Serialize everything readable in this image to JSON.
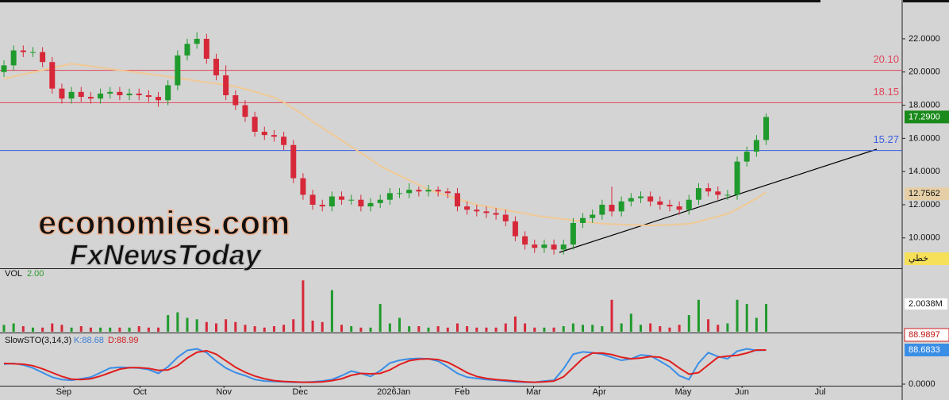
{
  "chart_data": {
    "type": "candlestick",
    "xlim": [
      -0.41,
      93.1
    ],
    "xticks": [
      {
        "value": 6.2,
        "label": "Sep"
      },
      {
        "value": 14.1,
        "label": "Oct"
      },
      {
        "value": 22.8,
        "label": "Nov"
      },
      {
        "value": 30.7,
        "label": "Dec"
      },
      {
        "value": 40.4,
        "label": "2026Jan"
      },
      {
        "value": 47.5,
        "label": "Feb"
      },
      {
        "value": 54.9,
        "label": "Mar"
      },
      {
        "value": 61.7,
        "label": "Apr"
      },
      {
        "value": 70.4,
        "label": "May"
      },
      {
        "value": 76.5,
        "label": "Jun"
      },
      {
        "value": 84.6,
        "label": "Jul"
      }
    ],
    "ylim": [
      8.22,
      24.34
    ],
    "yticks": [
      {
        "value": 10,
        "label": "10.0000"
      },
      {
        "value": 12,
        "label": "12.0000"
      },
      {
        "value": 14,
        "label": "14.0000"
      },
      {
        "value": 16,
        "label": "16.0000"
      },
      {
        "value": 18,
        "label": "18.0000"
      },
      {
        "value": 20,
        "label": "20.0000"
      },
      {
        "value": 22,
        "label": "22.0000"
      }
    ],
    "up_color": "#1f9a2c",
    "down_color": "#d62839",
    "open": [
      20.0,
      20.4,
      21.3,
      21.2,
      21.2,
      20.6,
      19.0,
      18.4,
      18.8,
      18.5,
      18.4,
      18.7,
      18.8,
      18.6,
      18.7,
      18.6,
      18.5,
      18.3,
      19.2,
      21.0,
      21.7,
      22.0,
      20.8,
      19.8,
      18.6,
      18.0,
      17.3,
      16.4,
      16.2,
      16.1,
      15.6,
      13.6,
      12.6,
      12.0,
      11.9,
      12.5,
      12.3,
      12.3,
      11.9,
      12.1,
      12.3,
      12.7,
      12.7,
      12.9,
      12.8,
      12.9,
      12.8,
      12.7,
      11.9,
      11.7,
      11.6,
      11.5,
      11.4,
      11.0,
      10.1,
      9.6,
      9.4,
      9.6,
      9.3,
      9.6,
      10.9,
      11.2,
      11.4,
      12.0,
      11.6,
      12.2,
      12.4,
      12.5,
      12.2,
      12.0,
      11.9,
      11.7,
      12.3,
      13.0,
      12.8,
      12.6,
      12.6,
      14.6,
      15.2,
      15.9
    ],
    "high": [
      20.7,
      21.6,
      21.6,
      21.5,
      21.5,
      20.9,
      19.3,
      19.1,
      19.1,
      18.8,
      19.0,
      19.1,
      19.1,
      19.0,
      19.0,
      18.9,
      18.8,
      19.5,
      21.3,
      22.0,
      22.4,
      22.3,
      21.1,
      20.4,
      18.9,
      18.3,
      17.6,
      16.7,
      16.5,
      16.4,
      15.9,
      13.9,
      12.9,
      12.3,
      12.8,
      12.8,
      12.6,
      12.6,
      12.4,
      12.6,
      13.0,
      13.0,
      13.3,
      13.1,
      13.2,
      13.1,
      13.0,
      13.0,
      12.2,
      12.0,
      11.9,
      11.8,
      11.7,
      11.3,
      10.4,
      9.9,
      9.9,
      9.9,
      9.9,
      11.2,
      11.5,
      11.7,
      12.3,
      13.1,
      12.5,
      12.7,
      12.8,
      12.8,
      12.5,
      12.3,
      12.2,
      12.6,
      13.3,
      13.3,
      13.1,
      12.9,
      14.9,
      15.5,
      16.2,
      17.5
    ],
    "low": [
      19.7,
      20.1,
      20.9,
      20.9,
      20.3,
      18.7,
      18.1,
      18.1,
      18.2,
      18.1,
      18.1,
      18.4,
      18.3,
      18.3,
      18.3,
      18.2,
      17.9,
      18.0,
      18.9,
      20.7,
      21.4,
      20.5,
      19.5,
      18.3,
      17.7,
      17.0,
      16.1,
      15.9,
      15.8,
      15.3,
      13.3,
      12.3,
      11.7,
      11.6,
      11.6,
      12.0,
      12.0,
      11.6,
      11.6,
      11.8,
      12.0,
      12.4,
      12.4,
      12.5,
      12.5,
      12.5,
      12.4,
      11.6,
      11.4,
      11.3,
      11.2,
      11.1,
      10.7,
      9.8,
      9.3,
      9.1,
      9.1,
      9.0,
      9.0,
      9.3,
      10.6,
      10.9,
      11.1,
      11.3,
      11.3,
      11.9,
      12.1,
      11.9,
      11.7,
      11.6,
      11.4,
      11.4,
      12.0,
      12.5,
      12.3,
      12.3,
      12.3,
      14.3,
      14.9,
      15.6
    ],
    "close": [
      20.4,
      21.3,
      21.2,
      21.2,
      20.6,
      19.0,
      18.4,
      18.8,
      18.5,
      18.4,
      18.7,
      18.8,
      18.6,
      18.7,
      18.6,
      18.5,
      18.3,
      19.2,
      21.0,
      21.7,
      22.0,
      20.8,
      19.8,
      18.6,
      18.0,
      17.3,
      16.4,
      16.2,
      16.1,
      15.6,
      13.6,
      12.6,
      12.0,
      11.9,
      12.5,
      12.3,
      12.3,
      11.9,
      12.1,
      12.3,
      12.7,
      12.7,
      12.9,
      12.8,
      12.9,
      12.8,
      12.7,
      11.9,
      11.7,
      11.6,
      11.5,
      11.4,
      11.0,
      10.1,
      9.6,
      9.4,
      9.6,
      9.3,
      9.6,
      10.9,
      11.2,
      11.4,
      12.0,
      11.6,
      12.2,
      12.4,
      12.5,
      12.2,
      12.0,
      11.9,
      11.7,
      12.3,
      13.0,
      12.8,
      12.6,
      12.6,
      14.6,
      15.2,
      15.9,
      17.29
    ],
    "ma": {
      "color": "#f0c994",
      "values": [
        19.6,
        19.73,
        19.86,
        19.98,
        20.12,
        20.25,
        20.37,
        20.5,
        20.42,
        20.35,
        20.26,
        20.18,
        20.11,
        20.04,
        19.96,
        19.88,
        19.8,
        19.72,
        19.63,
        19.55,
        19.46,
        19.38,
        19.3,
        19.21,
        19.12,
        18.97,
        18.81,
        18.64,
        18.47,
        18.18,
        17.8,
        17.43,
        17.02,
        16.64,
        16.26,
        15.88,
        15.5,
        15.12,
        14.74,
        14.33,
        14.04,
        13.76,
        13.48,
        13.2,
        12.9,
        12.72,
        12.54,
        12.36,
        12.18,
        12.0,
        11.9,
        11.78,
        11.68,
        11.57,
        11.47,
        11.36,
        11.27,
        11.2,
        11.13,
        11.06,
        11.0,
        10.93,
        10.86,
        10.83,
        10.81,
        10.79,
        10.77,
        10.75,
        10.77,
        10.8,
        10.82,
        10.85,
        10.98,
        11.14,
        11.29,
        11.46,
        11.74,
        12.06,
        12.38,
        12.7562
      ],
      "last_label": "12.7562"
    },
    "last_price": {
      "value": 17.29,
      "label": "17.2900"
    },
    "hlines": [
      {
        "value": 20.1,
        "label": "20.10",
        "color": "#e0465a"
      },
      {
        "value": 18.15,
        "label": "18.15",
        "color": "#e0465a"
      },
      {
        "value": 15.27,
        "label": "15.27",
        "color": "#3a5ee0"
      }
    ],
    "scale_mode": "خطي",
    "watermark": [
      "economies.com",
      "FxNewsToday"
    ],
    "volume": {
      "title": "VOL",
      "value_text": "2.00",
      "ylim": [
        0,
        4.46
      ],
      "yticks": [
        {
          "value": 2.0038,
          "label": "2.0038M"
        }
      ],
      "values": [
        0.5,
        0.6,
        0.4,
        0.3,
        0.3,
        0.6,
        0.5,
        0.3,
        0.4,
        0.3,
        0.3,
        0.3,
        0.3,
        0.3,
        0.4,
        0.3,
        0.3,
        1.2,
        1.4,
        1.0,
        0.9,
        0.7,
        0.6,
        0.9,
        0.7,
        0.5,
        0.4,
        0.3,
        0.4,
        0.5,
        0.9,
        3.7,
        0.8,
        0.7,
        3.0,
        0.5,
        0.4,
        0.3,
        0.3,
        2.0,
        0.6,
        1.0,
        0.4,
        0.4,
        0.3,
        0.4,
        0.3,
        0.6,
        0.4,
        0.3,
        0.3,
        0.3,
        0.6,
        1.1,
        0.6,
        0.3,
        0.3,
        0.3,
        0.4,
        0.6,
        0.5,
        0.5,
        0.4,
        2.3,
        0.6,
        1.3,
        0.5,
        0.6,
        0.4,
        0.3,
        0.5,
        1.2,
        2.3,
        0.9,
        0.5,
        0.6,
        2.3,
        2.0,
        1.0,
        2.0
      ]
    },
    "stochastic": {
      "title": "SlowSTO(3,14,3)",
      "ylim": [
        0,
        120
      ],
      "yticks": [
        {
          "value": 0,
          "label": "0.0000"
        }
      ],
      "series": [
        {
          "name": "K:88.68",
          "color": "#3a8ee6",
          "last_label": "88.6833",
          "values": [
            52,
            54,
            50,
            42,
            30,
            18,
            12,
            10,
            14,
            18,
            30,
            42,
            44,
            43,
            42,
            38,
            28,
            45,
            70,
            88,
            92,
            82,
            60,
            42,
            30,
            22,
            12,
            8,
            7,
            6,
            5,
            5,
            6,
            8,
            12,
            22,
            34,
            28,
            20,
            35,
            55,
            62,
            66,
            67,
            66,
            60,
            45,
            28,
            18,
            15,
            12,
            10,
            8,
            6,
            5,
            5,
            8,
            10,
            40,
            78,
            84,
            82,
            78,
            70,
            62,
            66,
            76,
            74,
            60,
            45,
            22,
            12,
            55,
            82,
            72,
            66,
            86,
            92,
            88,
            88.68
          ]
        },
        {
          "name": "D:88.99",
          "color": "#e01e1e",
          "last_label": "88.9897",
          "values": [
            54,
            53,
            52,
            48,
            40,
            30,
            20,
            13,
            12,
            14,
            21,
            30,
            39,
            43,
            43,
            41,
            36,
            37,
            48,
            68,
            83,
            87,
            78,
            61,
            44,
            31,
            21,
            14,
            9,
            7,
            6,
            5,
            5,
            6,
            9,
            14,
            23,
            28,
            27,
            28,
            37,
            51,
            61,
            65,
            66,
            64,
            57,
            44,
            30,
            20,
            15,
            12,
            10,
            8,
            6,
            5,
            6,
            8,
            19,
            43,
            67,
            81,
            81,
            77,
            70,
            66,
            68,
            72,
            70,
            60,
            42,
            26,
            30,
            50,
            70,
            73,
            75,
            81,
            89,
            88.99
          ]
        }
      ]
    }
  }
}
